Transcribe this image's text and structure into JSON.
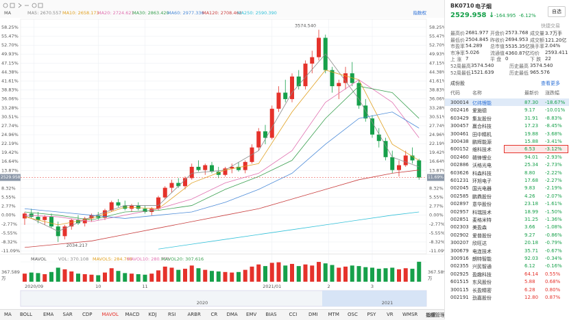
{
  "chart_data": [
    {
      "type": "candlestick",
      "legend_title": "MA",
      "right_link": "指数权",
      "grid": true,
      "up_color": "#e5322b",
      "down_color": "#16a04a",
      "ylim": [
        -11.09,
        58.25
      ],
      "yticks": [
        {
          "value": 58.25,
          "label": "58.25%"
        },
        {
          "value": 55.47,
          "label": "55.47%"
        },
        {
          "value": 52.7,
          "label": "52.70%"
        },
        {
          "value": 49.93,
          "label": "49.93%"
        },
        {
          "value": 47.15,
          "label": "47.15%"
        },
        {
          "value": 44.38,
          "label": "44.38%"
        },
        {
          "value": 41.61,
          "label": "41.61%"
        },
        {
          "value": 38.83,
          "label": "38.83%"
        },
        {
          "value": 36.06,
          "label": "36.06%"
        },
        {
          "value": 33.28,
          "label": "33.28%"
        },
        {
          "value": 30.51,
          "label": "30.51%"
        },
        {
          "value": 27.74,
          "label": "27.74%"
        },
        {
          "value": 24.96,
          "label": "24.96%"
        },
        {
          "value": 22.19,
          "label": "22.19%"
        },
        {
          "value": 19.42,
          "label": "19.42%"
        },
        {
          "value": 16.64,
          "label": "16.64%"
        },
        {
          "value": 13.87,
          "label": "13.87%"
        },
        {
          "value": 11.09,
          "label": "11.09%"
        },
        {
          "value": 8.32,
          "label": "8.32%"
        },
        {
          "value": 5.55,
          "label": "5.55%"
        },
        {
          "value": 2.77,
          "label": "2.77%"
        },
        {
          "value": 0,
          "label": "0.00%"
        },
        {
          "value": -2.77,
          "label": "-2.77%"
        },
        {
          "value": -5.55,
          "label": "-5.55%"
        },
        {
          "value": -8.32,
          "label": "-8.32%"
        },
        {
          "value": -11.09,
          "label": "-11.09%"
        }
      ],
      "xticks": [
        {
          "value": 1.4,
          "label": "2020/09"
        },
        {
          "value": 11,
          "label": "10"
        },
        {
          "value": 18,
          "label": "11"
        },
        {
          "value": 37,
          "label": "2021/01"
        },
        {
          "value": 45.5,
          "label": "2"
        },
        {
          "value": 52,
          "label": "3"
        }
      ],
      "high_label": "3574.540",
      "low_label": "2034.217",
      "last_price_label": "2529.958",
      "last_change": {
        "value": 11.69,
        "label": "11.69%"
      },
      "candles": [
        [
          -1,
          1,
          -3,
          0.5
        ],
        [
          0.5,
          2,
          -1,
          -0.5
        ],
        [
          -0.5,
          1,
          -2.5,
          -1.5
        ],
        [
          -1.5,
          0,
          -3,
          -0.5
        ],
        [
          -0.5,
          0.5,
          -4,
          -3.5
        ],
        [
          -3.5,
          -2,
          -8.3,
          -6.5
        ],
        [
          -6.5,
          -3,
          -7.5,
          -3.5
        ],
        [
          -3.5,
          -1,
          -4.5,
          -1.5
        ],
        [
          -1.5,
          0,
          -3,
          -2.5
        ],
        [
          -2.5,
          -0.5,
          -3.5,
          -1
        ],
        [
          -1,
          0.5,
          -2,
          0
        ],
        [
          0,
          1,
          -1.5,
          -0.8
        ],
        [
          -0.8,
          2,
          -1.5,
          1.5
        ],
        [
          1.5,
          4.5,
          1,
          4
        ],
        [
          4,
          5,
          2.5,
          3
        ],
        [
          3,
          4.5,
          1.5,
          2
        ],
        [
          2,
          3.5,
          1,
          3
        ],
        [
          3,
          4,
          1.5,
          2
        ],
        [
          2,
          3,
          0.5,
          1
        ],
        [
          1,
          2.5,
          0,
          2
        ],
        [
          2,
          6,
          1.5,
          5.5
        ],
        [
          5.5,
          9,
          5,
          8.5
        ],
        [
          8.5,
          11,
          7,
          10
        ],
        [
          10,
          11.5,
          8.5,
          9
        ],
        [
          9,
          12,
          8,
          11.5
        ],
        [
          11.5,
          16,
          11,
          15
        ],
        [
          15,
          17,
          13.5,
          14
        ],
        [
          14,
          16,
          12.5,
          15.5
        ],
        [
          15.5,
          16.5,
          13,
          13.5
        ],
        [
          13.5,
          15,
          11.5,
          12.5
        ],
        [
          12.5,
          15,
          12,
          14.5
        ],
        [
          14.5,
          16,
          13,
          15
        ],
        [
          15,
          16.5,
          13.5,
          14
        ],
        [
          14,
          17,
          13,
          16.5
        ],
        [
          16.5,
          22,
          16,
          21
        ],
        [
          21,
          27,
          20,
          26
        ],
        [
          26,
          28,
          22,
          24
        ],
        [
          24,
          34,
          23.5,
          33
        ],
        [
          33,
          40,
          32,
          38
        ],
        [
          38,
          42,
          35,
          36
        ],
        [
          36,
          44,
          35,
          43
        ],
        [
          43,
          45,
          39,
          40
        ],
        [
          40,
          48,
          39,
          47
        ],
        [
          47,
          51,
          44,
          49
        ],
        [
          49,
          57.5,
          48,
          55
        ],
        [
          55,
          56,
          44,
          45
        ],
        [
          45,
          46,
          38,
          40
        ],
        [
          40,
          42,
          36,
          41
        ],
        [
          41,
          46,
          39,
          44
        ],
        [
          44,
          47.5,
          40,
          41
        ],
        [
          41,
          42,
          33,
          34
        ],
        [
          34,
          36,
          29,
          30
        ],
        [
          30,
          31,
          24,
          25
        ],
        [
          25,
          27,
          21,
          23
        ],
        [
          23,
          24,
          17,
          18
        ],
        [
          18,
          20,
          13,
          14
        ],
        [
          14,
          17,
          12,
          15.5
        ],
        [
          15.5,
          20,
          15,
          18.5
        ],
        [
          18.5,
          21,
          16,
          17
        ],
        [
          17,
          17.5,
          11,
          11.69
        ]
      ],
      "x": [
        0,
        5,
        10,
        15,
        20,
        25,
        30,
        35,
        40,
        45,
        50,
        55,
        59
      ],
      "series": [
        {
          "name": "MA5: 2670.557",
          "color": "#8a8a8a",
          "values": [
            0,
            -5,
            -0.5,
            3,
            3,
            13,
            14,
            20,
            38,
            50,
            36,
            18,
            15
          ]
        },
        {
          "name": "MA10: 2658.173",
          "color": "#e0a020",
          "values": [
            -0.5,
            -3,
            -1,
            2.5,
            2,
            10,
            14,
            16,
            32,
            45,
            42,
            22,
            17
          ]
        },
        {
          "name": "MA20: 2724.621",
          "color": "#e070b0",
          "values": [
            0,
            -0.5,
            -2,
            0,
            2,
            5,
            10,
            13,
            20,
            35,
            42,
            35,
            24
          ]
        },
        {
          "name": "MA30: 2863.420",
          "color": "#3aa050",
          "values": [
            1,
            0,
            -1.5,
            1,
            1.5,
            3,
            8,
            12,
            17,
            30,
            40,
            38,
            30
          ]
        },
        {
          "name": "MA60: 2977.336",
          "color": "#4a8ad8",
          "values": [
            2,
            1,
            0,
            -1,
            0,
            1,
            4,
            8,
            13,
            22,
            30,
            32,
            27
          ]
        },
        {
          "name": "MA120: 2708.462",
          "color": "#c83c3c",
          "values": [
            -10,
            -9,
            -8,
            -6,
            -4,
            -2,
            0,
            2,
            5,
            8,
            11,
            13,
            14
          ]
        },
        {
          "name": "MA250: 2590.390",
          "color": "#30c0d8",
          "values": [
            null,
            null,
            null,
            null,
            -10.5,
            -9,
            -7.5,
            -6,
            -4.5,
            -3,
            -1.5,
            0,
            1
          ]
        }
      ]
    },
    {
      "type": "bar",
      "title": "MAVOL",
      "unit": "万",
      "ylim": [
        0,
        367.589
      ],
      "yticks": [
        {
          "value": 367.589,
          "label": "367.589"
        }
      ],
      "legend": [
        {
          "name": "VOL: 370.108",
          "color": "#8a8a8a"
        },
        {
          "name": "MAVOL5: 284.768",
          "color": "#e0a020"
        },
        {
          "name": "MAVOL10: 280.750",
          "color": "#e070b0"
        },
        {
          "name": "MAVOL20: 307.616",
          "color": "#3aa050"
        }
      ],
      "values": [
        150,
        170,
        160,
        140,
        180,
        260,
        230,
        190,
        150,
        140,
        130,
        120,
        170,
        250,
        200,
        160,
        150,
        140,
        130,
        150,
        210,
        280,
        260,
        220,
        240,
        300,
        250,
        220,
        200,
        190,
        180,
        170,
        180,
        220,
        280,
        320,
        290,
        350,
        360,
        300,
        330,
        290,
        320,
        300,
        367,
        340,
        310,
        260,
        280,
        300,
        290,
        270,
        260,
        240,
        250,
        260,
        230,
        250,
        240,
        370.108
      ]
    }
  ],
  "timeline": {
    "labels": [
      "2020",
      "2021"
    ]
  },
  "tabs": [
    "MA",
    "BOLL",
    "EMA",
    "SAR",
    "CDP",
    "MAVOL",
    "MACD",
    "KDJ",
    "RSI",
    "ARBR",
    "CR",
    "DMA",
    "EMV",
    "BIAS",
    "CCI",
    "DMI",
    "MTM",
    "OSC",
    "PSY",
    "VR",
    "WMSR",
    "指标管理"
  ],
  "tab_settings": "设置",
  "sidebar": {
    "code": "BK0710",
    "name": "电子烟",
    "price": "2529.958 ↓",
    "change": "-164.995",
    "change_pct": "-6.12%",
    "watch_button": "自选",
    "quick_trade": "快捷交易",
    "stats": [
      [
        [
          "最高价",
          "2681.977"
        ],
        [
          "开盘价",
          "2573.768"
        ],
        [
          "成交量",
          "3.7万手"
        ]
      ],
      [
        [
          "最低价",
          "2504.845"
        ],
        [
          "昨收价",
          "2694.953"
        ],
        [
          "成交额",
          "121.20亿"
        ]
      ],
      [
        [
          "市盈率",
          "54.289"
        ],
        [
          "总市值",
          "5535.35亿"
        ],
        [
          "换手率",
          "2.04%"
        ]
      ],
      [
        [
          "市净率",
          "5.026"
        ],
        [
          "流通值",
          "4360.87亿"
        ],
        [
          "均价",
          "2593.411"
        ]
      ],
      [
        [
          "上 涨",
          "7"
        ],
        [
          "平 盘",
          "0"
        ],
        [
          "下 跌",
          "22"
        ]
      ],
      [
        [
          "52周最高",
          "3574.540"
        ],
        [
          "历史最高",
          "3574.540"
        ]
      ],
      [
        [
          "52周最低",
          "1521.639"
        ],
        [
          "历史最低",
          "965.576"
        ]
      ]
    ],
    "constituents_title": "成份股",
    "more": "查看更多",
    "table": {
      "header": [
        "代码",
        "名称",
        "最新价",
        "涨跌幅"
      ],
      "rows": [
        [
          "300014",
          "亿纬锂能",
          "87.30",
          "-18.67%"
        ],
        [
          "002416",
          "爱施德",
          "9.17",
          "-10.01%"
        ],
        [
          "603429",
          "集友股份",
          "31.91",
          "-8.83%"
        ],
        [
          "300457",
          "赢合科技",
          "17.23",
          "-8.45%"
        ],
        [
          "300461",
          "田中精机",
          "19.88",
          "-3.68%"
        ],
        [
          "300438",
          "鹏辉能源",
          "15.88",
          "-3.41%"
        ],
        [
          "600152",
          "维科技术",
          "6.53",
          "-3.12%"
        ],
        [
          "002460",
          "赣锋锂业",
          "94.01",
          "-2.93%"
        ],
        [
          "002886",
          "沃格光电",
          "25.34",
          "-2.73%"
        ],
        [
          "603626",
          "科森科技",
          "8.80",
          "-2.22%"
        ],
        [
          "601231",
          "环旭电子",
          "17.68",
          "-2.27%"
        ],
        [
          "002045",
          "国光电器",
          "9.83",
          "-2.19%"
        ],
        [
          "002585",
          "鹏鼎股份",
          "4.26",
          "-2.07%"
        ],
        [
          "002897",
          "意华股份",
          "23.18",
          "-1.61%"
        ],
        [
          "002957",
          "科瑞技术",
          "18.99",
          "-1.50%"
        ],
        [
          "002851",
          "麦格米特",
          "31.25",
          "-1.36%"
        ],
        [
          "002303",
          "美盈森",
          "3.66",
          "-1.08%"
        ],
        [
          "002902",
          "爱普股份",
          "9.27",
          "-0.86%"
        ],
        [
          "300207",
          "欣旺达",
          "20.18",
          "-0.79%"
        ],
        [
          "300679",
          "电连技术",
          "35.71",
          "-0.67%"
        ],
        [
          "300916",
          "朗特智能",
          "92.03",
          "-0.34%"
        ],
        [
          "002355",
          "兴民智通",
          "6.12",
          "-0.16%"
        ],
        [
          "002925",
          "盈趣科技",
          "64.14",
          "0.55%"
        ],
        [
          "601515",
          "东风股份",
          "5.88",
          "0.68%"
        ],
        [
          "300115",
          "长盈精密",
          "6.28",
          "0.80%"
        ],
        [
          "002191",
          "劲嘉股份",
          "12.80",
          "0.87%"
        ]
      ]
    }
  }
}
